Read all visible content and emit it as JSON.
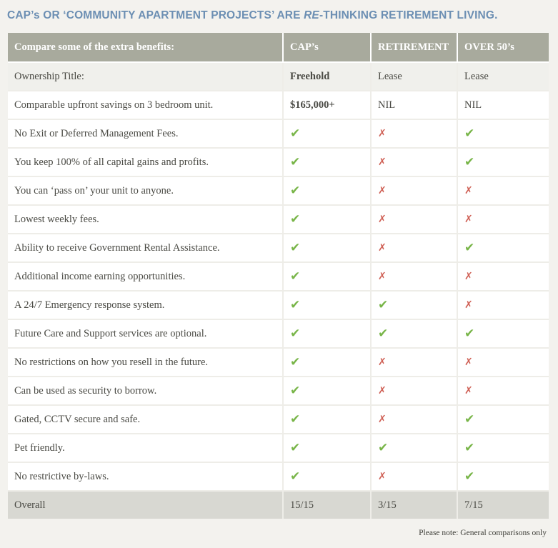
{
  "title": {
    "prefix": "CAP’s OR ‘COMMUNITY APARTMENT PROJECTS’ ARE ",
    "emphasis": "RE",
    "suffix": "-THINKING RETIREMENT LIVING."
  },
  "table": {
    "headers": [
      "Compare some of the extra benefits:",
      "CAP’s",
      "RETIREMENT",
      "OVER 50’s"
    ],
    "ownership": {
      "label": "Ownership Title:",
      "values": [
        "Freehold",
        "Lease",
        "Lease"
      ]
    },
    "savings": {
      "label": "Comparable upfront savings on 3 bedroom unit.",
      "values": [
        "$165,000+",
        "NIL",
        "NIL"
      ]
    },
    "rows": [
      {
        "label": "No Exit or Deferred Management Fees.",
        "marks": [
          "check",
          "cross",
          "check"
        ]
      },
      {
        "label": "You keep 100% of all capital gains and profits.",
        "marks": [
          "check",
          "cross",
          "check"
        ]
      },
      {
        "label": "You can ‘pass on’ your unit to anyone.",
        "marks": [
          "check",
          "cross",
          "cross"
        ]
      },
      {
        "label": "Lowest weekly fees.",
        "marks": [
          "check",
          "cross",
          "cross"
        ]
      },
      {
        "label": "Ability  to receive Government Rental Assistance.",
        "marks": [
          "check",
          "cross",
          "check"
        ]
      },
      {
        "label": "Additional income earning opportunities.",
        "marks": [
          "check",
          "cross",
          "cross"
        ]
      },
      {
        "label": "A 24/7 Emergency response system.",
        "marks": [
          "check",
          "check",
          "cross"
        ]
      },
      {
        "label": "Future Care and Support services are optional.",
        "marks": [
          "check",
          "check",
          "check"
        ]
      },
      {
        "label": "No restrictions on how you resell in the future.",
        "marks": [
          "check",
          "cross",
          "cross"
        ]
      },
      {
        "label": "Can be used as  security to borrow.",
        "marks": [
          "check",
          "cross",
          "cross"
        ]
      },
      {
        "label": "Gated, CCTV secure and safe.",
        "marks": [
          "check",
          "cross",
          "check"
        ]
      },
      {
        "label": "Pet friendly.",
        "marks": [
          "check",
          "check",
          "check"
        ]
      },
      {
        "label": "No restrictive by-laws.",
        "marks": [
          "check",
          "cross",
          "check"
        ]
      }
    ],
    "overall": {
      "label": "Overall",
      "values": [
        "15/15",
        "3/15",
        "7/15"
      ]
    }
  },
  "glyphs": {
    "check": "✔",
    "cross": "✗"
  },
  "colors": {
    "title": "#6c8fb3",
    "header_bg": "#a8aa9d",
    "check": "#78b548",
    "cross": "#cf5f54",
    "overall_bg": "#d8d8d2"
  },
  "note": "Please note: General comparisons only"
}
